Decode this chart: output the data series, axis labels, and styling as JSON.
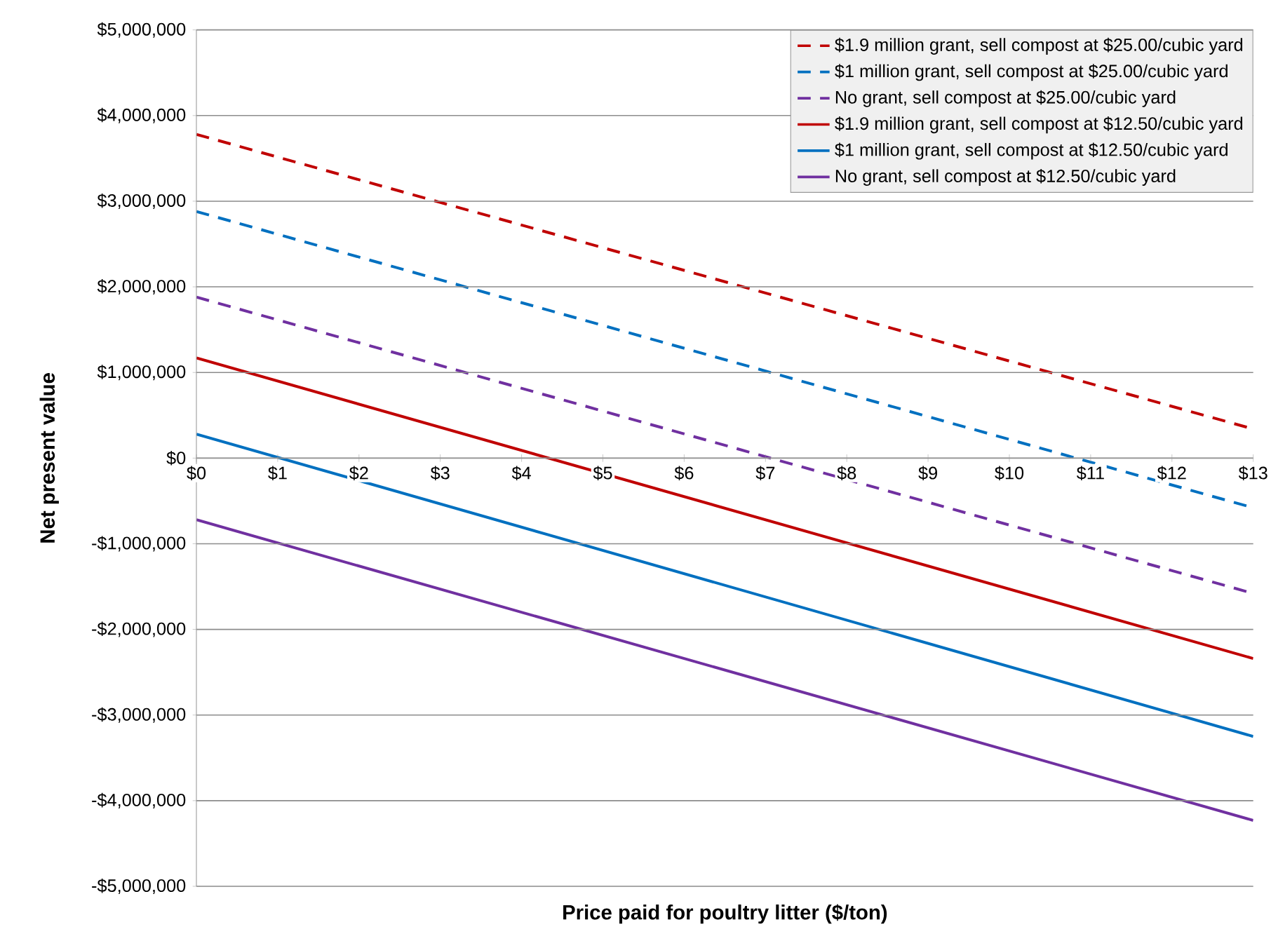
{
  "chart_data": {
    "type": "line",
    "xlabel": "Price paid for poultry litter ($/ton)",
    "ylabel": "Net present value",
    "x": [
      0,
      13
    ],
    "series": [
      {
        "name": "$1.9 million grant, sell compost at $25.00/cubic yard",
        "color": "#c00000",
        "line_style": "dashed",
        "values": [
          3780000,
          340000
        ]
      },
      {
        "name": "$1 million grant, sell compost at $25.00/cubic yard",
        "color": "#0070c0",
        "line_style": "dashed",
        "values": [
          2880000,
          -580000
        ]
      },
      {
        "name": "No grant, sell compost at $25.00/cubic yard",
        "color": "#7030a0",
        "line_style": "dashed",
        "values": [
          1880000,
          -1580000
        ]
      },
      {
        "name": "$1.9 million grant, sell compost at $12.50/cubic yard",
        "color": "#c00000",
        "line_style": "solid",
        "values": [
          1170000,
          -2340000
        ]
      },
      {
        "name": "$1 million grant, sell compost at $12.50/cubic yard",
        "color": "#0070c0",
        "line_style": "solid",
        "values": [
          280000,
          -3250000
        ]
      },
      {
        "name": "No grant, sell compost at $12.50/cubic yard",
        "color": "#7030a0",
        "line_style": "solid",
        "values": [
          -720000,
          -4230000
        ]
      }
    ],
    "xlim": [
      0,
      13
    ],
    "xticks": [
      {
        "value": 0,
        "label": "$0"
      },
      {
        "value": 1,
        "label": "$1"
      },
      {
        "value": 2,
        "label": "$2"
      },
      {
        "value": 3,
        "label": "$3"
      },
      {
        "value": 4,
        "label": "$4"
      },
      {
        "value": 5,
        "label": "$5"
      },
      {
        "value": 6,
        "label": "$6"
      },
      {
        "value": 7,
        "label": "$7"
      },
      {
        "value": 8,
        "label": "$8"
      },
      {
        "value": 9,
        "label": "$9"
      },
      {
        "value": 10,
        "label": "$10"
      },
      {
        "value": 11,
        "label": "$11"
      },
      {
        "value": 12,
        "label": "$12"
      },
      {
        "value": 13,
        "label": "$13"
      }
    ],
    "ylim": [
      -5000000,
      5000000
    ],
    "yticks": [
      {
        "value": -5000000,
        "label": "-$5,000,000"
      },
      {
        "value": -4000000,
        "label": "-$4,000,000"
      },
      {
        "value": -3000000,
        "label": "-$3,000,000"
      },
      {
        "value": -2000000,
        "label": "-$2,000,000"
      },
      {
        "value": -1000000,
        "label": "-$1,000,000"
      },
      {
        "value": 0,
        "label": "$0"
      },
      {
        "value": 1000000,
        "label": "$1,000,000"
      },
      {
        "value": 2000000,
        "label": "$2,000,000"
      },
      {
        "value": 3000000,
        "label": "$3,000,000"
      },
      {
        "value": 4000000,
        "label": "$4,000,000"
      },
      {
        "value": 5000000,
        "label": "$5,000,000"
      }
    ],
    "grid": "y",
    "legend": "top right",
    "marker": "none"
  }
}
